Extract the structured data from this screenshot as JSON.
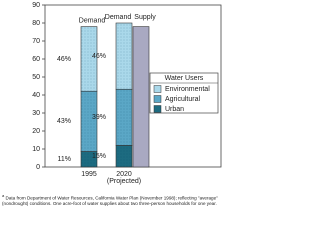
{
  "chart_data": {
    "type": "bar",
    "categories": [
      "1995",
      "2020 (Projected)"
    ],
    "series": [
      {
        "name": "Urban",
        "color": "#1d6b80",
        "values": [
          8.6,
          12
        ],
        "shares": [
          "11%",
          "15%"
        ]
      },
      {
        "name": "Agricultural",
        "color": "#5ba7c6",
        "values": [
          33.5,
          31.2
        ],
        "shares": [
          "43%",
          "39%"
        ]
      },
      {
        "name": "Environmental",
        "color": "#aad8ea",
        "values": [
          35.9,
          36.8
        ],
        "shares": [
          "46%",
          "46%"
        ]
      }
    ],
    "stacked": true,
    "demand_label": "Demand",
    "supply": {
      "name": "Supply",
      "color": "#a9a9c2",
      "values": [
        null,
        78
      ]
    },
    "legend_title": "Water Users",
    "ylim": [
      0,
      90
    ],
    "yticks": [
      0,
      10,
      20,
      30,
      40,
      50,
      60,
      70,
      80,
      90
    ],
    "footnote_marker": "a",
    "footnote": "Data from Department of Water Resources, California Water Plan (November 1998); reflecting \"average\" (nondrought) conditions. One acre-foot of water supplies about two three-person households for one year."
  }
}
